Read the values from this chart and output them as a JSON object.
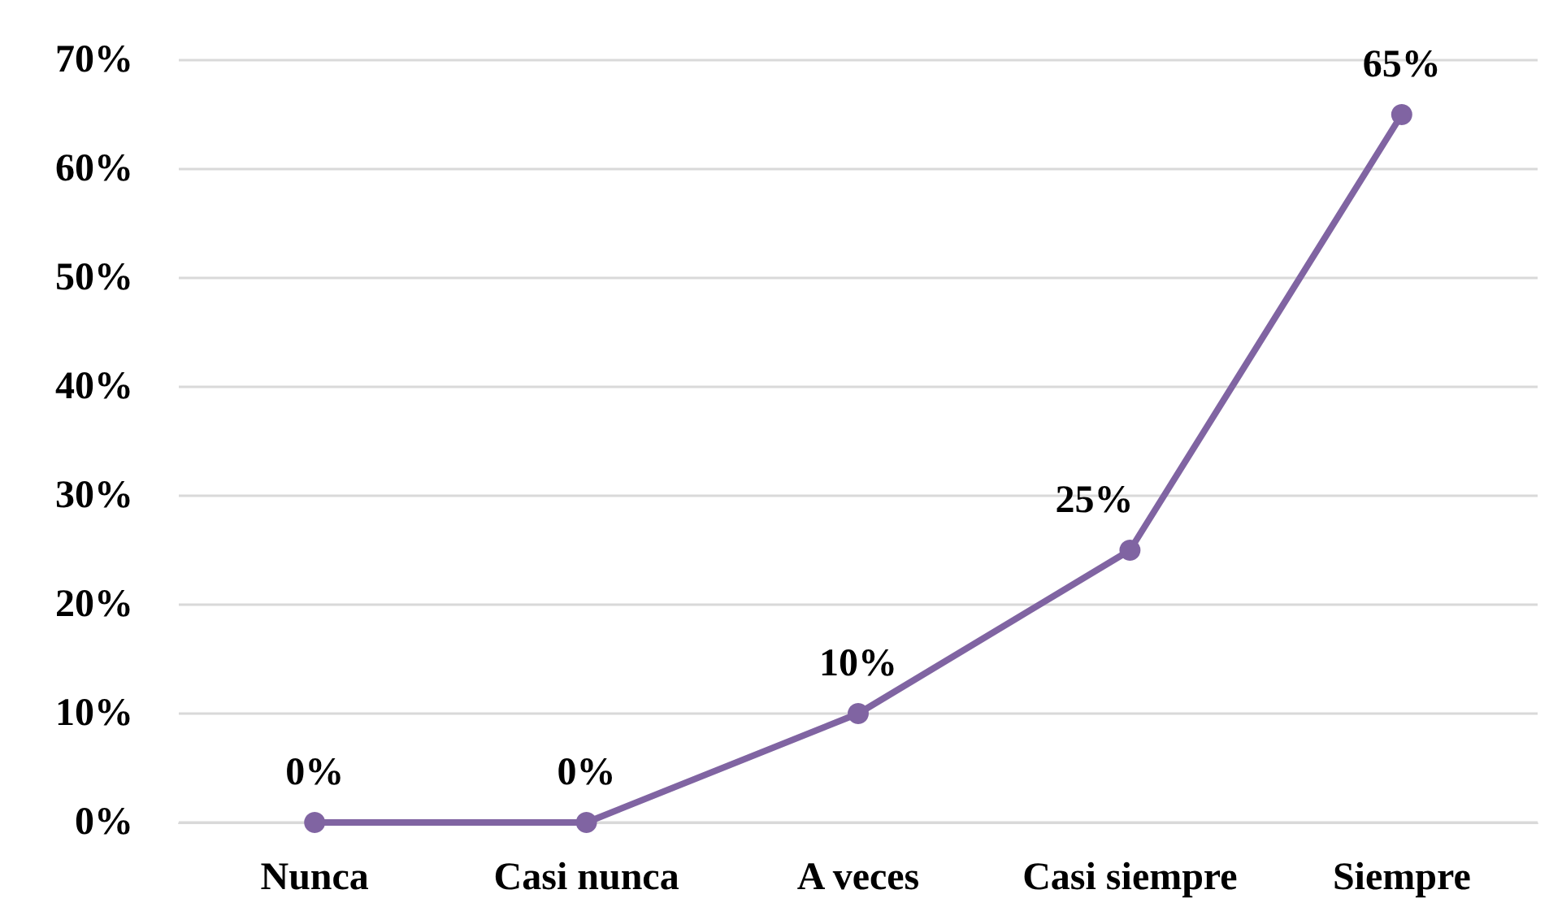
{
  "chart_data": {
    "type": "line",
    "categories": [
      "Nunca",
      "Casi nunca",
      "A veces",
      "Casi siempre",
      "Siempre"
    ],
    "series": [
      {
        "color": "#8064a2",
        "values": [
          0,
          0,
          10,
          25,
          65
        ],
        "value_labels": [
          "0%",
          "0%",
          "10%",
          "25%",
          "65%"
        ]
      }
    ],
    "ylim": [
      0,
      70
    ],
    "yticks": [
      {
        "value": 0,
        "label": "0%"
      },
      {
        "value": 10,
        "label": "10%"
      },
      {
        "value": 20,
        "label": "20%"
      },
      {
        "value": 30,
        "label": "30%"
      },
      {
        "value": 40,
        "label": "40%"
      },
      {
        "value": 50,
        "label": "50%"
      },
      {
        "value": 60,
        "label": "60%"
      },
      {
        "value": 70,
        "label": "70%"
      }
    ],
    "grid": "y",
    "marker": "circle",
    "line_style": "solid"
  }
}
